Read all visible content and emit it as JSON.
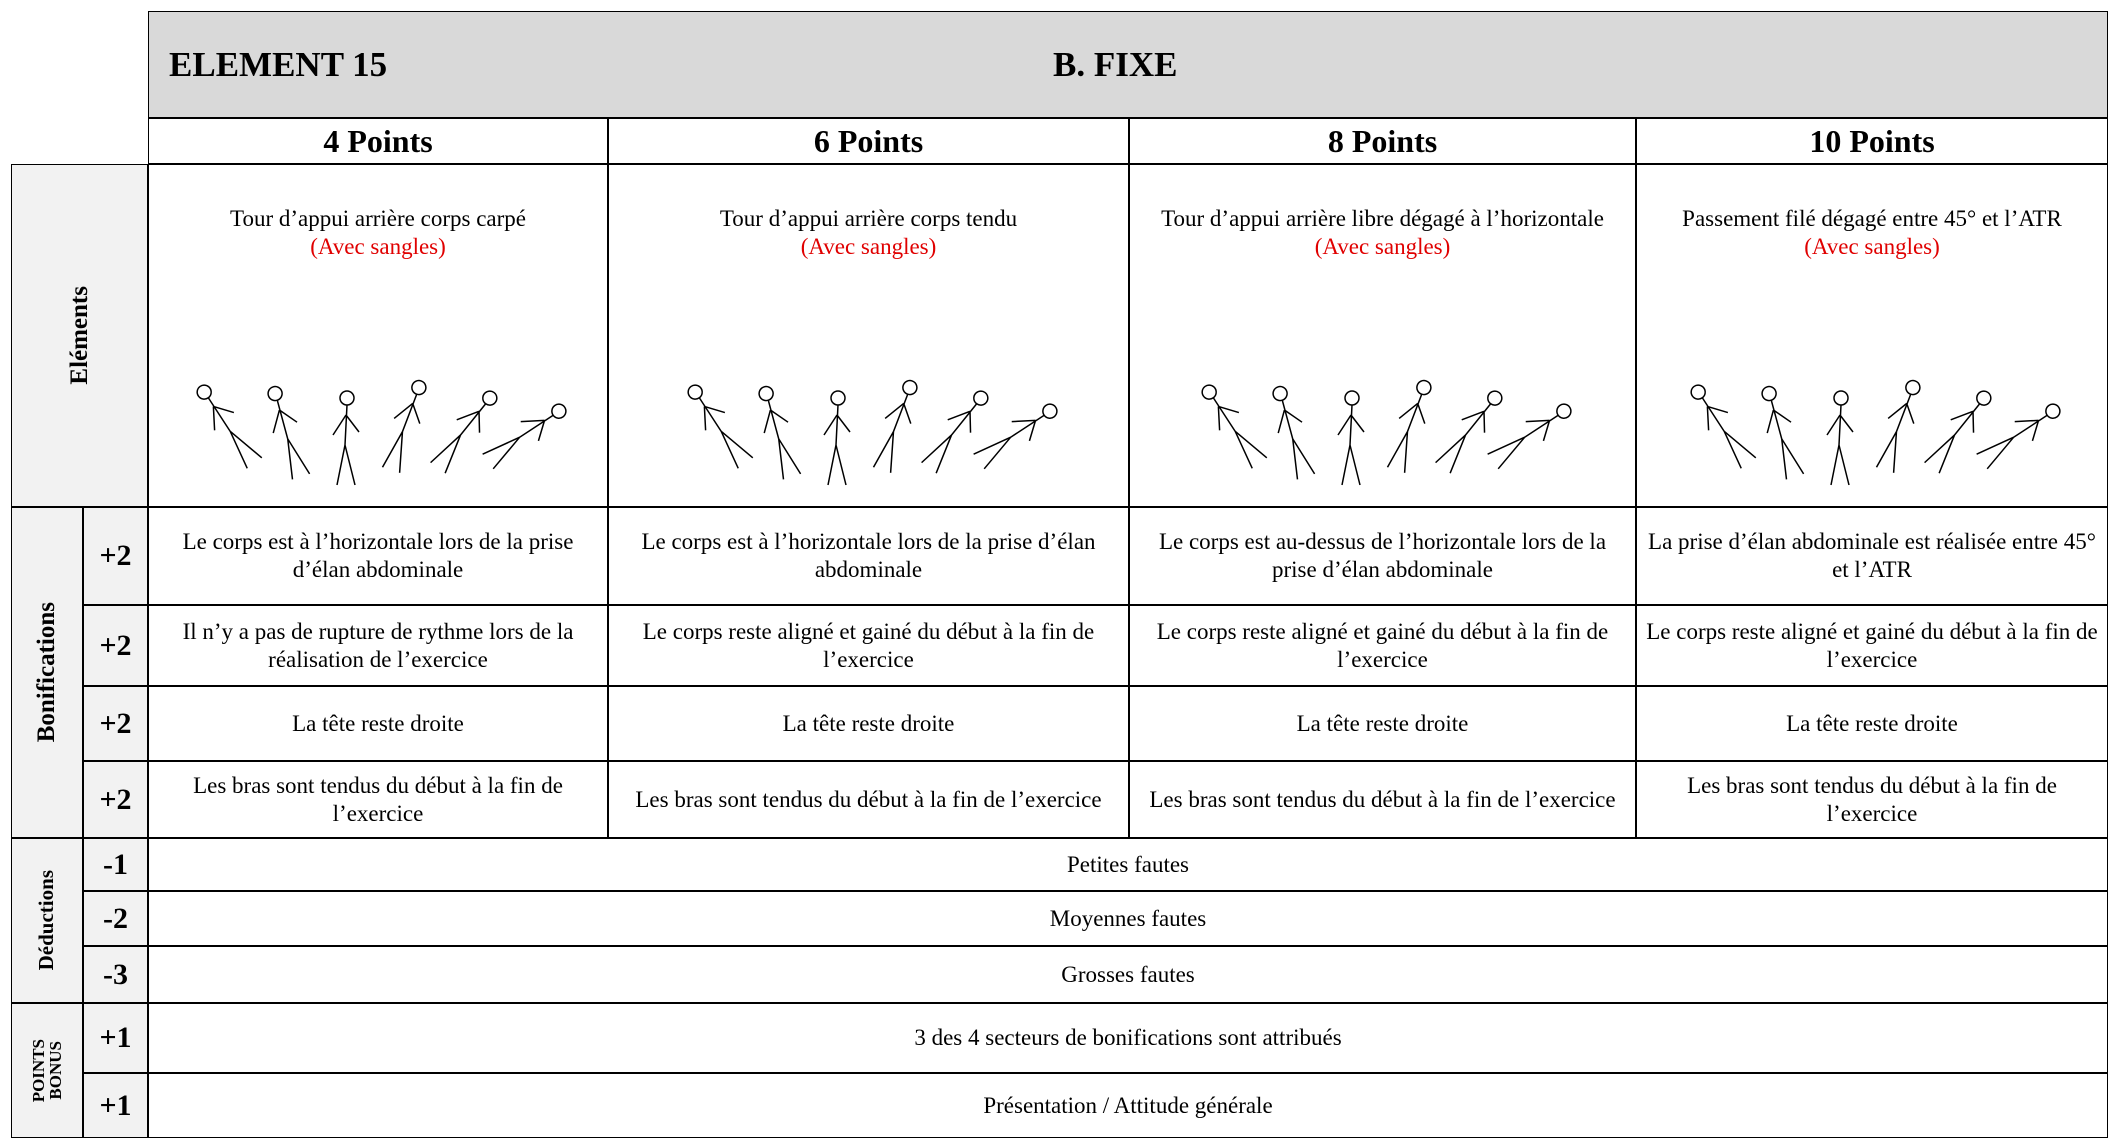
{
  "header": {
    "element": "ELEMENT 15",
    "apparatus": "B. FIXE"
  },
  "columns": [
    "4 Points",
    "6 Points",
    "8 Points",
    "10 Points"
  ],
  "elements": {
    "label": "Eléments",
    "items": [
      {
        "text": "Tour d’appui arrière corps carpé",
        "note": "(Avec sangles)"
      },
      {
        "text": "Tour d’appui arrière corps tendu",
        "note": "(Avec sangles)"
      },
      {
        "text": "Tour d’appui arrière libre dégagé à l’horizontale",
        "note": "(Avec sangles)"
      },
      {
        "text": "Passement filé dégagé entre 45° et  l’ATR",
        "note": "(Avec sangles)"
      }
    ]
  },
  "bonifications": {
    "label": "Bonifications",
    "rows": [
      {
        "points": "+2",
        "cells": [
          "Le corps est à l’horizontale lors de la prise d’élan abdominale",
          "Le corps est à l’horizontale lors de la prise d’élan abdominale",
          "Le corps est au-dessus de l’horizontale lors de la prise d’élan abdominale",
          "La prise d’élan abdominale est réalisée entre 45° et l’ATR"
        ]
      },
      {
        "points": "+2",
        "cells": [
          "Il n’y a pas de rupture de rythme lors de la réalisation de l’exercice",
          "Le corps reste aligné et gainé du début à la fin de l’exercice",
          "Le corps reste aligné et gainé du début à la fin de l’exercice",
          "Le corps reste aligné et gainé du début à la fin de l’exercice"
        ]
      },
      {
        "points": "+2",
        "cells": [
          "La tête reste droite",
          "La tête reste droite",
          "La tête reste droite",
          "La tête reste droite"
        ]
      },
      {
        "points": "+2",
        "cells": [
          "Les bras sont tendus du début à la fin de l’exercice",
          "Les bras sont tendus du début à la fin de l’exercice",
          "Les bras sont tendus du début à la fin de l’exercice",
          "Les bras sont tendus du début à la fin de l’exercice"
        ]
      }
    ]
  },
  "deductions": {
    "label": "Déductions",
    "rows": [
      {
        "points": "-1",
        "text": "Petites fautes"
      },
      {
        "points": "-2",
        "text": "Moyennes fautes"
      },
      {
        "points": "-3",
        "text": "Grosses fautes"
      }
    ]
  },
  "bonus": {
    "label": [
      "POINTS",
      "BONUS"
    ],
    "rows": [
      {
        "points": "+1",
        "text": "3 des 4 secteurs de bonifications sont attribués"
      },
      {
        "points": "+1",
        "text": "Présentation / Attitude générale"
      }
    ]
  }
}
